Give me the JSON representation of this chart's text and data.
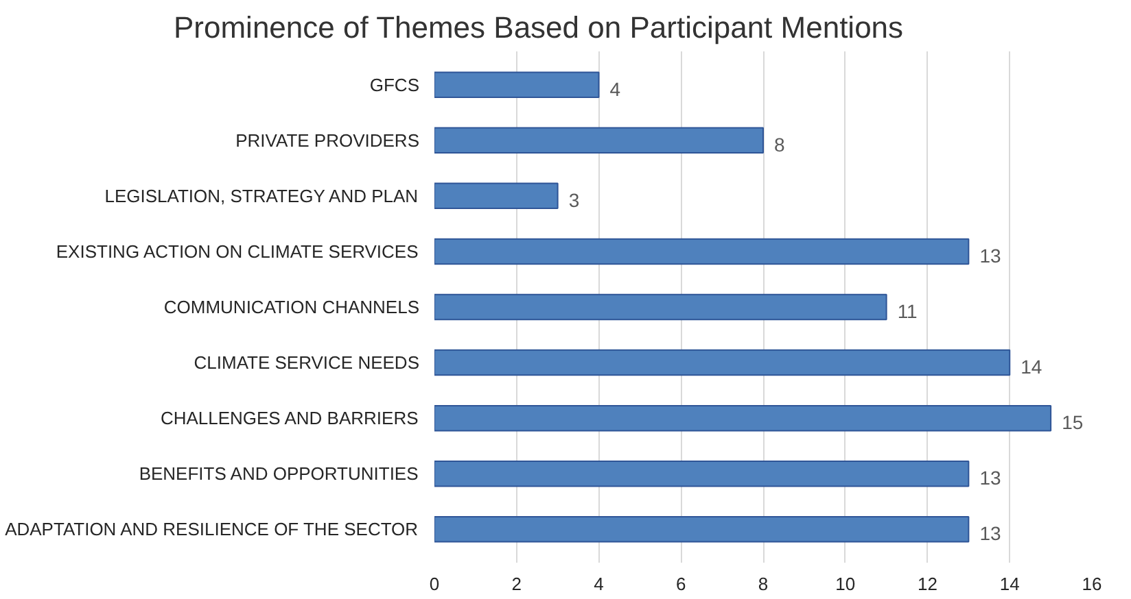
{
  "chart_data": {
    "type": "bar",
    "orientation": "horizontal",
    "title": "Prominence of Themes Based on Participant Mentions",
    "categories": [
      "GFCS",
      "PRIVATE PROVIDERS",
      "LEGISLATION, STRATEGY AND PLAN",
      "EXISTING ACTION ON CLIMATE SERVICES",
      "COMMUNICATION CHANNELS",
      "CLIMATE SERVICE NEEDS",
      "CHALLENGES AND BARRIERS",
      "BENEFITS AND OPPORTUNITIES",
      "ADAPTATION AND RESILIENCE OF THE SECTOR"
    ],
    "values": [
      4,
      8,
      3,
      13,
      11,
      14,
      15,
      13,
      13
    ],
    "color": "#4f81bd",
    "xlim": [
      0,
      16
    ],
    "xticks": [
      0,
      2,
      4,
      6,
      8,
      10,
      12,
      14,
      16
    ],
    "grid": "x",
    "data_labels": true
  }
}
